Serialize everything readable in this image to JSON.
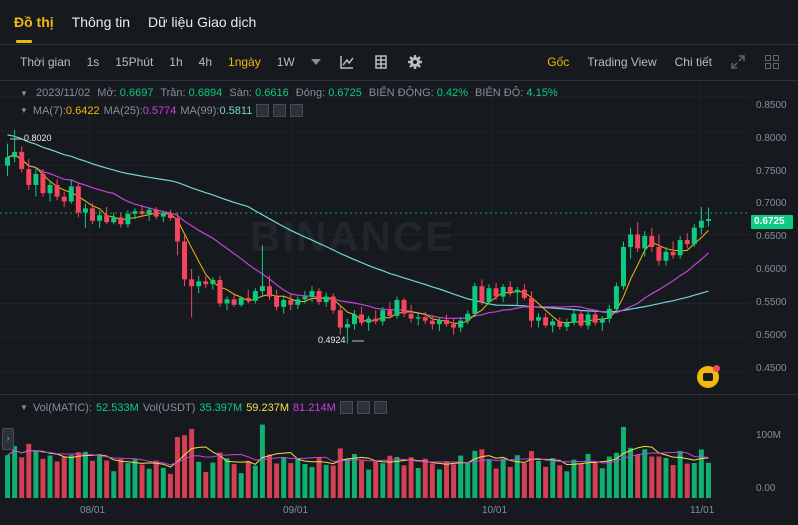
{
  "tabs": [
    "Đồ thị",
    "Thông tin",
    "Dữ liệu Giao dịch"
  ],
  "toolbar": {
    "time_label": "Thời gian",
    "intervals": [
      "1s",
      "15Phút",
      "1h",
      "4h",
      "1ngày",
      "1W"
    ],
    "active_interval": "1ngày",
    "right": [
      "Gốc",
      "Trading View",
      "Chi tiết"
    ],
    "active_right": "Gốc"
  },
  "ohlc": {
    "date": "2023/11/02",
    "open_label": "Mở:",
    "open": "0.6697",
    "high_label": "Trần:",
    "high": "0.6894",
    "low_label": "Sàn:",
    "low": "0.6616",
    "close_label": "Đóng:",
    "close": "0.6725",
    "change_label": "BIẾN ĐỘNG:",
    "change": "0.42%",
    "amp_label": "BIÊN ĐỘ:",
    "amp": "4.15%"
  },
  "ma": {
    "ma7_label": "MA(7):",
    "ma7": "0.6422",
    "ma25_label": "MA(25):",
    "ma25": "0.5774",
    "ma99_label": "MA(99):",
    "ma99": "0.5811"
  },
  "volume": {
    "vol_label": "Vol(MATIC):",
    "vol_matic": "52.533M",
    "vol_usdt_label": "Vol(USDT)",
    "vol_usdt": "35.397M",
    "ma1": "59.237M",
    "ma2": "81.214M"
  },
  "price_axis": [
    "0.8500",
    "0.8000",
    "0.7500",
    "0.7000",
    "0.6500",
    "0.6000",
    "0.5500",
    "0.5000",
    "0.4500"
  ],
  "last_price": "0.6725",
  "vol_axis": [
    "100M",
    "0.00"
  ],
  "date_axis": [
    "08/01",
    "09/01",
    "10/01",
    "11/01"
  ],
  "annotations": {
    "high_mark": "0.8020",
    "low_mark": "0.4924"
  },
  "watermark": "BINANCE",
  "colors": {
    "up": "#0ecb81",
    "down": "#f6465d",
    "ma7": "#f0b90b",
    "ma25": "#c840e0",
    "ma99": "#6fd6d0",
    "accent": "#f0b90b"
  },
  "chart_data": {
    "type": "candlestick",
    "ylim": [
      0.42,
      0.87
    ],
    "candles": [
      [
        0.75,
        0.782,
        0.735,
        0.762
      ],
      [
        0.762,
        0.802,
        0.755,
        0.77
      ],
      [
        0.77,
        0.778,
        0.74,
        0.745
      ],
      [
        0.745,
        0.76,
        0.715,
        0.722
      ],
      [
        0.722,
        0.748,
        0.705,
        0.738
      ],
      [
        0.738,
        0.745,
        0.705,
        0.71
      ],
      [
        0.71,
        0.728,
        0.698,
        0.722
      ],
      [
        0.722,
        0.73,
        0.7,
        0.705
      ],
      [
        0.705,
        0.712,
        0.69,
        0.698
      ],
      [
        0.698,
        0.73,
        0.695,
        0.72
      ],
      [
        0.72,
        0.725,
        0.675,
        0.682
      ],
      [
        0.682,
        0.695,
        0.66,
        0.688
      ],
      [
        0.688,
        0.695,
        0.665,
        0.67
      ],
      [
        0.67,
        0.685,
        0.66,
        0.678
      ],
      [
        0.678,
        0.69,
        0.665,
        0.668
      ],
      [
        0.668,
        0.682,
        0.665,
        0.675
      ],
      [
        0.675,
        0.682,
        0.66,
        0.665
      ],
      [
        0.665,
        0.685,
        0.66,
        0.68
      ],
      [
        0.68,
        0.688,
        0.672,
        0.684
      ],
      [
        0.684,
        0.692,
        0.675,
        0.68
      ],
      [
        0.68,
        0.69,
        0.67,
        0.686
      ],
      [
        0.686,
        0.69,
        0.672,
        0.676
      ],
      [
        0.676,
        0.684,
        0.668,
        0.68
      ],
      [
        0.68,
        0.686,
        0.67,
        0.674
      ],
      [
        0.674,
        0.682,
        0.62,
        0.64
      ],
      [
        0.64,
        0.65,
        0.575,
        0.585
      ],
      [
        0.585,
        0.6,
        0.53,
        0.575
      ],
      [
        0.575,
        0.59,
        0.565,
        0.582
      ],
      [
        0.582,
        0.59,
        0.572,
        0.578
      ],
      [
        0.578,
        0.588,
        0.57,
        0.584
      ],
      [
        0.584,
        0.59,
        0.545,
        0.55
      ],
      [
        0.55,
        0.56,
        0.54,
        0.556
      ],
      [
        0.556,
        0.565,
        0.545,
        0.548
      ],
      [
        0.548,
        0.56,
        0.545,
        0.558
      ],
      [
        0.558,
        0.57,
        0.55,
        0.554
      ],
      [
        0.554,
        0.572,
        0.55,
        0.568
      ],
      [
        0.568,
        0.635,
        0.56,
        0.575
      ],
      [
        0.575,
        0.59,
        0.555,
        0.56
      ],
      [
        0.56,
        0.57,
        0.54,
        0.545
      ],
      [
        0.545,
        0.56,
        0.535,
        0.555
      ],
      [
        0.555,
        0.565,
        0.54,
        0.548
      ],
      [
        0.548,
        0.56,
        0.542,
        0.556
      ],
      [
        0.556,
        0.568,
        0.55,
        0.56
      ],
      [
        0.56,
        0.575,
        0.552,
        0.568
      ],
      [
        0.568,
        0.572,
        0.548,
        0.552
      ],
      [
        0.552,
        0.566,
        0.545,
        0.56
      ],
      [
        0.56,
        0.565,
        0.535,
        0.54
      ],
      [
        0.54,
        0.548,
        0.505,
        0.515
      ],
      [
        0.515,
        0.528,
        0.492,
        0.52
      ],
      [
        0.52,
        0.54,
        0.512,
        0.534
      ],
      [
        0.534,
        0.545,
        0.518,
        0.522
      ],
      [
        0.522,
        0.532,
        0.51,
        0.528
      ],
      [
        0.528,
        0.54,
        0.52,
        0.524
      ],
      [
        0.524,
        0.545,
        0.518,
        0.54
      ],
      [
        0.54,
        0.552,
        0.528,
        0.532
      ],
      [
        0.532,
        0.56,
        0.528,
        0.555
      ],
      [
        0.555,
        0.558,
        0.53,
        0.535
      ],
      [
        0.535,
        0.548,
        0.522,
        0.528
      ],
      [
        0.528,
        0.536,
        0.518,
        0.53
      ],
      [
        0.53,
        0.538,
        0.52,
        0.525
      ],
      [
        0.525,
        0.532,
        0.512,
        0.52
      ],
      [
        0.52,
        0.53,
        0.51,
        0.526
      ],
      [
        0.526,
        0.534,
        0.516,
        0.52
      ],
      [
        0.52,
        0.528,
        0.505,
        0.515
      ],
      [
        0.515,
        0.53,
        0.508,
        0.525
      ],
      [
        0.525,
        0.54,
        0.52,
        0.535
      ],
      [
        0.535,
        0.58,
        0.53,
        0.575
      ],
      [
        0.575,
        0.585,
        0.548,
        0.552
      ],
      [
        0.552,
        0.578,
        0.548,
        0.572
      ],
      [
        0.572,
        0.58,
        0.555,
        0.56
      ],
      [
        0.56,
        0.578,
        0.552,
        0.574
      ],
      [
        0.574,
        0.582,
        0.56,
        0.566
      ],
      [
        0.566,
        0.574,
        0.548,
        0.57
      ],
      [
        0.57,
        0.578,
        0.555,
        0.558
      ],
      [
        0.558,
        0.568,
        0.515,
        0.525
      ],
      [
        0.525,
        0.536,
        0.515,
        0.53
      ],
      [
        0.53,
        0.536,
        0.515,
        0.518
      ],
      [
        0.518,
        0.528,
        0.508,
        0.524
      ],
      [
        0.524,
        0.53,
        0.512,
        0.516
      ],
      [
        0.516,
        0.528,
        0.51,
        0.522
      ],
      [
        0.522,
        0.54,
        0.518,
        0.535
      ],
      [
        0.535,
        0.54,
        0.515,
        0.518
      ],
      [
        0.518,
        0.538,
        0.512,
        0.534
      ],
      [
        0.534,
        0.54,
        0.518,
        0.522
      ],
      [
        0.522,
        0.532,
        0.51,
        0.528
      ],
      [
        0.528,
        0.548,
        0.522,
        0.542
      ],
      [
        0.542,
        0.58,
        0.538,
        0.575
      ],
      [
        0.575,
        0.64,
        0.57,
        0.632
      ],
      [
        0.632,
        0.66,
        0.615,
        0.65
      ],
      [
        0.65,
        0.668,
        0.625,
        0.63
      ],
      [
        0.63,
        0.655,
        0.618,
        0.648
      ],
      [
        0.648,
        0.66,
        0.625,
        0.632
      ],
      [
        0.632,
        0.65,
        0.605,
        0.612
      ],
      [
        0.612,
        0.632,
        0.605,
        0.625
      ],
      [
        0.625,
        0.64,
        0.615,
        0.62
      ],
      [
        0.62,
        0.648,
        0.615,
        0.642
      ],
      [
        0.642,
        0.652,
        0.63,
        0.636
      ],
      [
        0.636,
        0.665,
        0.632,
        0.66
      ],
      [
        0.66,
        0.69,
        0.65,
        0.67
      ],
      [
        0.6697,
        0.6894,
        0.6616,
        0.6725
      ]
    ],
    "volume_max": 140
  }
}
